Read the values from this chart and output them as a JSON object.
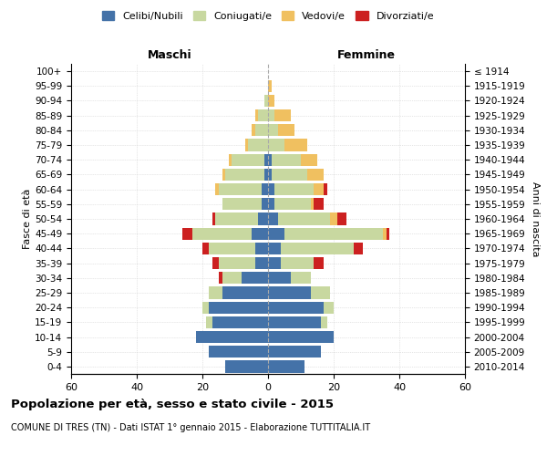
{
  "age_groups": [
    "0-4",
    "5-9",
    "10-14",
    "15-19",
    "20-24",
    "25-29",
    "30-34",
    "35-39",
    "40-44",
    "45-49",
    "50-54",
    "55-59",
    "60-64",
    "65-69",
    "70-74",
    "75-79",
    "80-84",
    "85-89",
    "90-94",
    "95-99",
    "100+"
  ],
  "birth_years": [
    "2010-2014",
    "2005-2009",
    "2000-2004",
    "1995-1999",
    "1990-1994",
    "1985-1989",
    "1980-1984",
    "1975-1979",
    "1970-1974",
    "1965-1969",
    "1960-1964",
    "1955-1959",
    "1950-1954",
    "1945-1949",
    "1940-1944",
    "1935-1939",
    "1930-1934",
    "1925-1929",
    "1920-1924",
    "1915-1919",
    "≤ 1914"
  ],
  "males": {
    "celibi": [
      13,
      18,
      22,
      17,
      18,
      14,
      8,
      4,
      4,
      5,
      3,
      2,
      2,
      1,
      1,
      0,
      0,
      0,
      0,
      0,
      0
    ],
    "coniugati": [
      0,
      0,
      0,
      2,
      2,
      4,
      6,
      11,
      14,
      18,
      13,
      12,
      13,
      12,
      10,
      6,
      4,
      3,
      1,
      0,
      0
    ],
    "vedovi": [
      0,
      0,
      0,
      0,
      0,
      0,
      0,
      0,
      0,
      0,
      0,
      0,
      1,
      1,
      1,
      1,
      1,
      1,
      0,
      0,
      0
    ],
    "divorziati": [
      0,
      0,
      0,
      0,
      0,
      0,
      1,
      2,
      2,
      3,
      1,
      0,
      0,
      0,
      0,
      0,
      0,
      0,
      0,
      0,
      0
    ]
  },
  "females": {
    "nubili": [
      11,
      16,
      20,
      16,
      17,
      13,
      7,
      4,
      4,
      5,
      3,
      2,
      2,
      1,
      1,
      0,
      0,
      0,
      0,
      0,
      0
    ],
    "coniugate": [
      0,
      0,
      0,
      2,
      3,
      6,
      6,
      10,
      22,
      30,
      16,
      11,
      12,
      11,
      9,
      5,
      3,
      2,
      0,
      0,
      0
    ],
    "vedove": [
      0,
      0,
      0,
      0,
      0,
      0,
      0,
      0,
      0,
      1,
      2,
      1,
      3,
      5,
      5,
      7,
      5,
      5,
      2,
      1,
      0
    ],
    "divorziate": [
      0,
      0,
      0,
      0,
      0,
      0,
      0,
      3,
      3,
      1,
      3,
      3,
      1,
      0,
      0,
      0,
      0,
      0,
      0,
      0,
      0
    ]
  },
  "colors": {
    "celibi_nubili": "#4472a8",
    "coniugati": "#c8d8a0",
    "vedovi": "#f0c060",
    "divorziati": "#cc2020"
  },
  "xlim": 60,
  "xticks": [
    -60,
    -40,
    -20,
    0,
    20,
    40,
    60
  ],
  "title": "Popolazione per età, sesso e stato civile - 2015",
  "subtitle": "COMUNE DI TRES (TN) - Dati ISTAT 1° gennaio 2015 - Elaborazione TUTTITALIA.IT",
  "xlabel_left": "Maschi",
  "xlabel_right": "Femmine",
  "ylabel_left": "Fasce di età",
  "ylabel_right": "Anni di nascita",
  "legend_labels": [
    "Celibi/Nubili",
    "Coniugati/e",
    "Vedovi/e",
    "Divorziati/e"
  ]
}
